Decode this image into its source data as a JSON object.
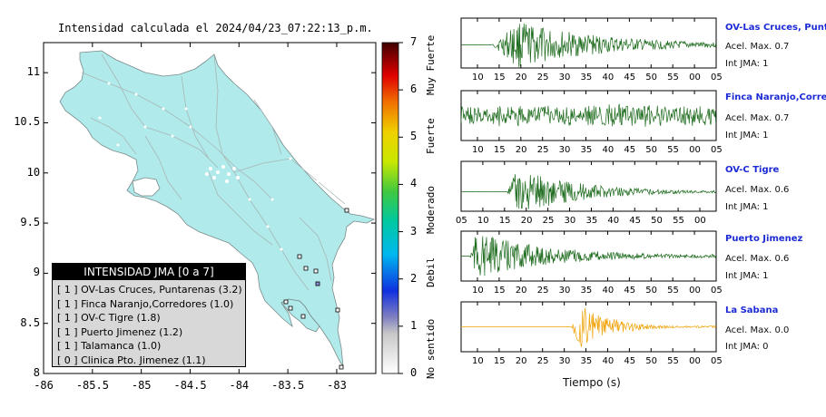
{
  "map": {
    "title": "Intensidad calculada el 2024/04/23_07:22:13_p.m.",
    "x_ticks": [
      "-86",
      "-85.5",
      "-85",
      "-84.5",
      "-84",
      "-83.5",
      "-83"
    ],
    "y_ticks": [
      "11",
      "10.5",
      "10",
      "9.5",
      "9",
      "8.5",
      "8"
    ]
  },
  "colorbar": {
    "ticks": [
      "0",
      "1",
      "2",
      "3",
      "4",
      "5",
      "6",
      "7"
    ],
    "labels": [
      "No sentido",
      "Debil",
      "Moderado",
      "Fuerte",
      "Muy Fuerte"
    ]
  },
  "legend": {
    "title": "INTENSIDAD JMA [0 a 7]",
    "rows": [
      "[ 1 ]  OV-Las Cruces, Puntarenas (3.2)",
      "[ 1 ]  Finca Naranjo,Corredores (1.0)",
      "[ 1 ]  OV-C Tigre (1.8)",
      "[ 1 ]  Puerto Jimenez (1.2)",
      "[ 1 ]  Talamanca (1.0)",
      "[ 0 ]  Clinica Pto. Jimenez (1.1)"
    ]
  },
  "waveforms": {
    "x_axis_label": "Tiempo (s)",
    "panels": [
      {
        "name": "OV-Las Cruces, Puntar",
        "acel": "Acel. Max. 0.7",
        "jma": "Int JMA: 1",
        "color": "#1d6b1d",
        "ticks": [
          "10",
          "15",
          "20",
          "25",
          "30",
          "35",
          "40",
          "45",
          "50",
          "55",
          "00",
          "05"
        ]
      },
      {
        "name": "Finca Naranjo,Corredor",
        "acel": "Acel. Max. 0.7",
        "jma": "Int JMA: 1",
        "color": "#1d6b1d",
        "ticks": [
          "10",
          "15",
          "20",
          "25",
          "30",
          "35",
          "40",
          "45",
          "50",
          "55",
          "00",
          "05"
        ]
      },
      {
        "name": "OV-C Tigre",
        "acel": "Acel. Max. 0.6",
        "jma": "Int JMA: 1",
        "color": "#1d6b1d",
        "ticks": [
          "05",
          "10",
          "15",
          "20",
          "25",
          "30",
          "35",
          "40",
          "45",
          "50",
          "55",
          "00"
        ]
      },
      {
        "name": "Puerto Jimenez",
        "acel": "Acel. Max. 0.6",
        "jma": "Int JMA: 1",
        "color": "#1d6b1d",
        "ticks": [
          "10",
          "15",
          "20",
          "25",
          "30",
          "35",
          "40",
          "45",
          "50",
          "55",
          "00",
          "05"
        ]
      },
      {
        "name": "La Sabana",
        "acel": "Acel. Max. 0.0",
        "jma": "Int JMA: 0",
        "color": "#f0a000",
        "ticks": [
          "10",
          "15",
          "20",
          "25",
          "30",
          "35",
          "40",
          "45",
          "50",
          "55",
          "00",
          "05"
        ]
      }
    ]
  },
  "chart_data": [
    {
      "type": "heatmap",
      "title": "Intensidad calculada el 2024/04/23_07:22:13_p.m.",
      "xlim": [
        -86,
        -82.6
      ],
      "ylim": [
        8,
        11.3
      ],
      "colorbar_range": [
        0,
        7
      ],
      "stations": [
        {
          "name": "OV-Las Cruces, Puntarenas",
          "jma": 1,
          "value": 3.2
        },
        {
          "name": "Finca Naranjo,Corredores",
          "jma": 1,
          "value": 1.0
        },
        {
          "name": "OV-C Tigre",
          "jma": 1,
          "value": 1.8
        },
        {
          "name": "Puerto Jimenez",
          "jma": 1,
          "value": 1.2
        },
        {
          "name": "Talamanca",
          "jma": 1,
          "value": 1.0
        },
        {
          "name": "Clinica Pto. Jimenez",
          "jma": 0,
          "value": 1.1
        }
      ]
    },
    {
      "type": "line",
      "xlabel": "Tiempo (s)",
      "series": [
        {
          "name": "OV-Las Cruces, Puntar",
          "peak_acel": 0.7,
          "jma": 1
        },
        {
          "name": "Finca Naranjo,Corredor",
          "peak_acel": 0.7,
          "jma": 1
        },
        {
          "name": "OV-C Tigre",
          "peak_acel": 0.6,
          "jma": 1
        },
        {
          "name": "Puerto Jimenez",
          "peak_acel": 0.6,
          "jma": 1
        },
        {
          "name": "La Sabana",
          "peak_acel": 0.0,
          "jma": 0
        }
      ]
    }
  ]
}
